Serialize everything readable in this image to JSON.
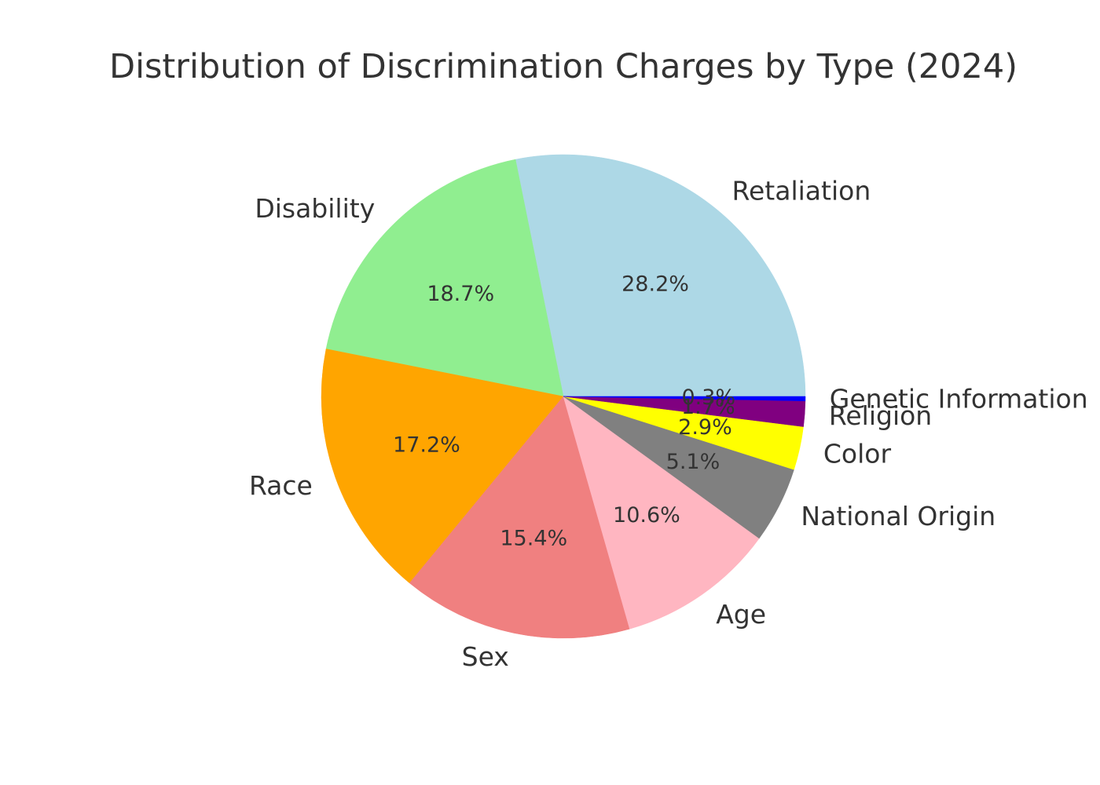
{
  "chart_data": {
    "type": "pie",
    "title": "Distribution of Discrimination Charges by Type (2024)",
    "slices": [
      {
        "label": "Retaliation",
        "value": 28.2,
        "pct_label": "28.2%",
        "color": "#add8e6"
      },
      {
        "label": "Disability",
        "value": 18.7,
        "pct_label": "18.7%",
        "color": "#90ee90"
      },
      {
        "label": "Race",
        "value": 17.2,
        "pct_label": "17.2%",
        "color": "#ffa500"
      },
      {
        "label": "Sex",
        "value": 15.4,
        "pct_label": "15.4%",
        "color": "#f08080"
      },
      {
        "label": "Age",
        "value": 10.6,
        "pct_label": "10.6%",
        "color": "#ffb6c1"
      },
      {
        "label": "National Origin",
        "value": 5.1,
        "pct_label": "5.1%",
        "color": "#808080"
      },
      {
        "label": "Color",
        "value": 2.9,
        "pct_label": "2.9%",
        "color": "#ffff00"
      },
      {
        "label": "Religion",
        "value": 1.7,
        "pct_label": "1.7%",
        "color": "#800080"
      },
      {
        "label": "Genetic Information",
        "value": 0.3,
        "pct_label": "0.3%",
        "color": "#0000ff"
      }
    ],
    "start_angle": "0 degrees (3 o'clock)",
    "direction": "counterclockwise",
    "legend": "none"
  }
}
